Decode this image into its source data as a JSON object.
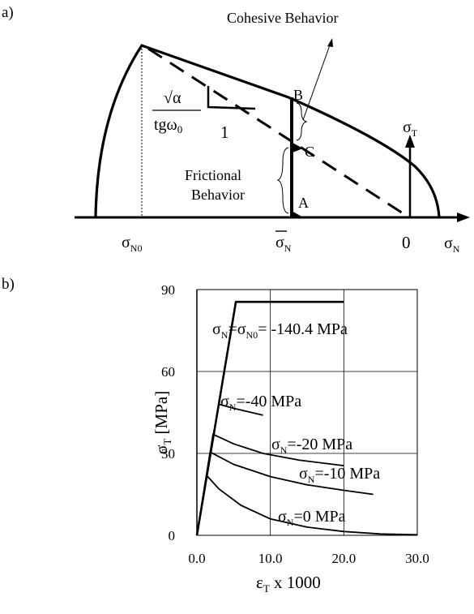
{
  "panel_a": {
    "label": "a)",
    "cohesive_label": "Cohesive Behavior",
    "frictional_label_1": "Frictional",
    "frictional_label_2": "Behavior",
    "slope_numerator": "√α",
    "slope_denominator_main": "tgω",
    "slope_denominator_sub": "0",
    "slope_run": "1",
    "point_a": "A",
    "point_b": "B",
    "point_c": "C",
    "sigma_t_main": "σ",
    "sigma_t_sub": "T",
    "sigma_n0_main": "σ",
    "sigma_n0_sub": "N0",
    "sigma_nbar_main": "σ",
    "sigma_nbar_sub": "N",
    "zero_label": "0",
    "sigma_n_main": "σ",
    "sigma_n_sub": "N"
  },
  "panel_b": {
    "label": "b)"
  },
  "chart_data": {
    "type": "line",
    "xlabel": "ε_T x 1000",
    "ylabel": "σ_T [MPa]",
    "xlim": [
      0,
      30
    ],
    "ylim": [
      0,
      90
    ],
    "x_ticks": [
      "0.0",
      "10.0",
      "20.0",
      "30.0"
    ],
    "y_ticks": [
      "0",
      "30",
      "60",
      "90"
    ],
    "grid": true,
    "series": [
      {
        "name": "σN=σN0= -140.4 MPa",
        "points": [
          [
            0,
            0
          ],
          [
            5.3,
            85.5
          ],
          [
            20,
            85.5
          ]
        ]
      },
      {
        "name": "σN=-40 MPa",
        "points": [
          [
            0,
            0
          ],
          [
            3,
            48
          ],
          [
            5,
            46.5
          ],
          [
            9,
            44
          ]
        ]
      },
      {
        "name": "σN=-20 MPa",
        "points": [
          [
            0,
            0
          ],
          [
            2.2,
            37
          ],
          [
            5,
            33.5
          ],
          [
            9,
            30
          ],
          [
            14,
            27.5
          ],
          [
            20,
            25.5
          ]
        ]
      },
      {
        "name": "σN=-10 MPa",
        "points": [
          [
            0,
            0
          ],
          [
            1.8,
            30.5
          ],
          [
            5,
            26
          ],
          [
            10,
            21.5
          ],
          [
            15,
            18.5
          ],
          [
            20,
            16.5
          ],
          [
            24,
            15
          ]
        ]
      },
      {
        "name": "σN=0 MPa",
        "points": [
          [
            0,
            0
          ],
          [
            1.3,
            22
          ],
          [
            3,
            17
          ],
          [
            6,
            11
          ],
          [
            10,
            6
          ],
          [
            15,
            3
          ],
          [
            20,
            1.4
          ],
          [
            25,
            0.5
          ],
          [
            30,
            0.2
          ]
        ]
      }
    ],
    "annotations": [
      {
        "main": "σ",
        "sub": "N",
        "rest": "=",
        "main2": "σ",
        "sub2": "N0",
        "rest2": "= -140.4 MPa"
      },
      {
        "main": "σ",
        "sub": "N",
        "rest": "=-40 MPa"
      },
      {
        "main": "σ",
        "sub": "N",
        "rest": "=-20 MPa"
      },
      {
        "main": "σ",
        "sub": "N",
        "rest": "=-10 MPa"
      },
      {
        "main": "σ",
        "sub": "N",
        "rest": "=0 MPa"
      }
    ],
    "xlabel_parts": {
      "main": "ε",
      "sub": "T",
      "rest": " x 1000"
    },
    "ylabel_parts": {
      "main": "σ",
      "sub": "T",
      "rest": " [MPa]"
    }
  }
}
